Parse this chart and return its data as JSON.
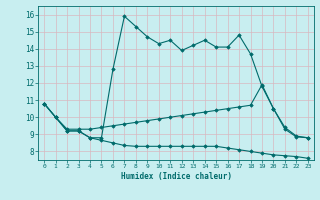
{
  "title": "",
  "xlabel": "Humidex (Indice chaleur)",
  "bg_color": "#c8eef0",
  "grid_color": "#b0d8d0",
  "line_color": "#006b6b",
  "spine_color": "#006b6b",
  "xlim": [
    -0.5,
    23.5
  ],
  "ylim": [
    7.5,
    16.5
  ],
  "xticks": [
    0,
    1,
    2,
    3,
    4,
    5,
    6,
    7,
    8,
    9,
    10,
    11,
    12,
    13,
    14,
    15,
    16,
    17,
    18,
    19,
    20,
    21,
    22,
    23
  ],
  "yticks": [
    8,
    9,
    10,
    11,
    12,
    13,
    14,
    15,
    16
  ],
  "line1_x": [
    0,
    1,
    2,
    3,
    4,
    5,
    6,
    7,
    8,
    9,
    10,
    11,
    12,
    13,
    14,
    15,
    16,
    17,
    18,
    19,
    20,
    21,
    22,
    23
  ],
  "line1_y": [
    10.8,
    10.0,
    9.2,
    9.2,
    8.8,
    8.8,
    12.8,
    15.9,
    15.3,
    14.7,
    14.3,
    14.5,
    13.9,
    14.2,
    14.5,
    14.1,
    14.1,
    14.8,
    13.7,
    11.8,
    10.5,
    9.4,
    8.9,
    8.8
  ],
  "line2_x": [
    0,
    1,
    2,
    3,
    4,
    5,
    6,
    7,
    8,
    9,
    10,
    11,
    12,
    13,
    14,
    15,
    16,
    17,
    18,
    19,
    20,
    21,
    22,
    23
  ],
  "line2_y": [
    10.8,
    10.0,
    9.3,
    9.3,
    9.3,
    9.4,
    9.5,
    9.6,
    9.7,
    9.8,
    9.9,
    10.0,
    10.1,
    10.2,
    10.3,
    10.4,
    10.5,
    10.6,
    10.7,
    11.9,
    10.5,
    9.3,
    8.85,
    8.8
  ],
  "line3_x": [
    0,
    1,
    2,
    3,
    4,
    5,
    6,
    7,
    8,
    9,
    10,
    11,
    12,
    13,
    14,
    15,
    16,
    17,
    18,
    19,
    20,
    21,
    22,
    23
  ],
  "line3_y": [
    10.8,
    10.0,
    9.2,
    9.2,
    8.8,
    8.65,
    8.5,
    8.35,
    8.3,
    8.3,
    8.3,
    8.3,
    8.3,
    8.3,
    8.3,
    8.3,
    8.2,
    8.1,
    8.0,
    7.9,
    7.8,
    7.75,
    7.7,
    7.6
  ]
}
